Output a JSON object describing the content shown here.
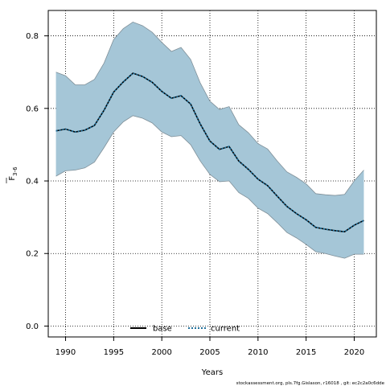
{
  "chart_data": {
    "type": "area",
    "xlabel": "Years",
    "ylabel_main": "F",
    "ylabel_sub": "3-6",
    "xlim": [
      1988.2,
      2022.3
    ],
    "ylim": [
      -0.03,
      0.87
    ],
    "x_ticks": [
      1990,
      1995,
      2000,
      2005,
      2010,
      2015,
      2020
    ],
    "y_ticks": [
      0.0,
      0.2,
      0.4,
      0.6,
      0.8
    ],
    "y_tick_labels": [
      "0.0",
      "0.2",
      "0.4",
      "0.6",
      "0.8"
    ],
    "grid": true,
    "legend_position": "bottom-center",
    "x": [
      1989,
      1990,
      1991,
      1992,
      1993,
      1994,
      1995,
      1996,
      1997,
      1998,
      1999,
      2000,
      2001,
      2002,
      2003,
      2004,
      2005,
      2006,
      2007,
      2008,
      2009,
      2010,
      2011,
      2012,
      2013,
      2014,
      2015,
      2016,
      2017,
      2018,
      2019,
      2020,
      2021
    ],
    "band": {
      "upper": [
        0.7,
        0.69,
        0.665,
        0.665,
        0.68,
        0.725,
        0.79,
        0.82,
        0.838,
        0.828,
        0.81,
        0.782,
        0.757,
        0.768,
        0.735,
        0.67,
        0.62,
        0.597,
        0.605,
        0.555,
        0.533,
        0.503,
        0.488,
        0.455,
        0.425,
        0.41,
        0.392,
        0.365,
        0.362,
        0.36,
        0.363,
        0.4,
        0.43
      ],
      "lower": [
        0.413,
        0.428,
        0.43,
        0.436,
        0.452,
        0.492,
        0.535,
        0.563,
        0.58,
        0.573,
        0.56,
        0.535,
        0.522,
        0.525,
        0.5,
        0.455,
        0.418,
        0.398,
        0.4,
        0.368,
        0.352,
        0.325,
        0.31,
        0.285,
        0.258,
        0.243,
        0.225,
        0.205,
        0.2,
        0.193,
        0.187,
        0.198,
        0.198
      ],
      "color": "#a5c6d7",
      "edge_color": "#7f8f98"
    },
    "series": [
      {
        "name": "base",
        "style": "solid",
        "color": "#000000",
        "values": [
          0.538,
          0.543,
          0.535,
          0.54,
          0.553,
          0.595,
          0.645,
          0.673,
          0.697,
          0.688,
          0.672,
          0.647,
          0.628,
          0.635,
          0.612,
          0.557,
          0.51,
          0.487,
          0.495,
          0.455,
          0.432,
          0.405,
          0.387,
          0.358,
          0.33,
          0.31,
          0.293,
          0.272,
          0.267,
          0.263,
          0.26,
          0.278,
          0.291
        ]
      },
      {
        "name": "current",
        "style": "dotted",
        "color": "#1f6f9a",
        "values": [
          0.538,
          0.543,
          0.535,
          0.54,
          0.553,
          0.595,
          0.645,
          0.673,
          0.697,
          0.688,
          0.672,
          0.647,
          0.628,
          0.635,
          0.612,
          0.557,
          0.51,
          0.487,
          0.495,
          0.455,
          0.432,
          0.405,
          0.387,
          0.358,
          0.33,
          0.31,
          0.293,
          0.272,
          0.267,
          0.263,
          0.26,
          0.278,
          0.291
        ]
      }
    ],
    "credit": "stockassessment.org, pls.7fg.Gislason, r16018 , git: ec2c2a0c6dde"
  }
}
